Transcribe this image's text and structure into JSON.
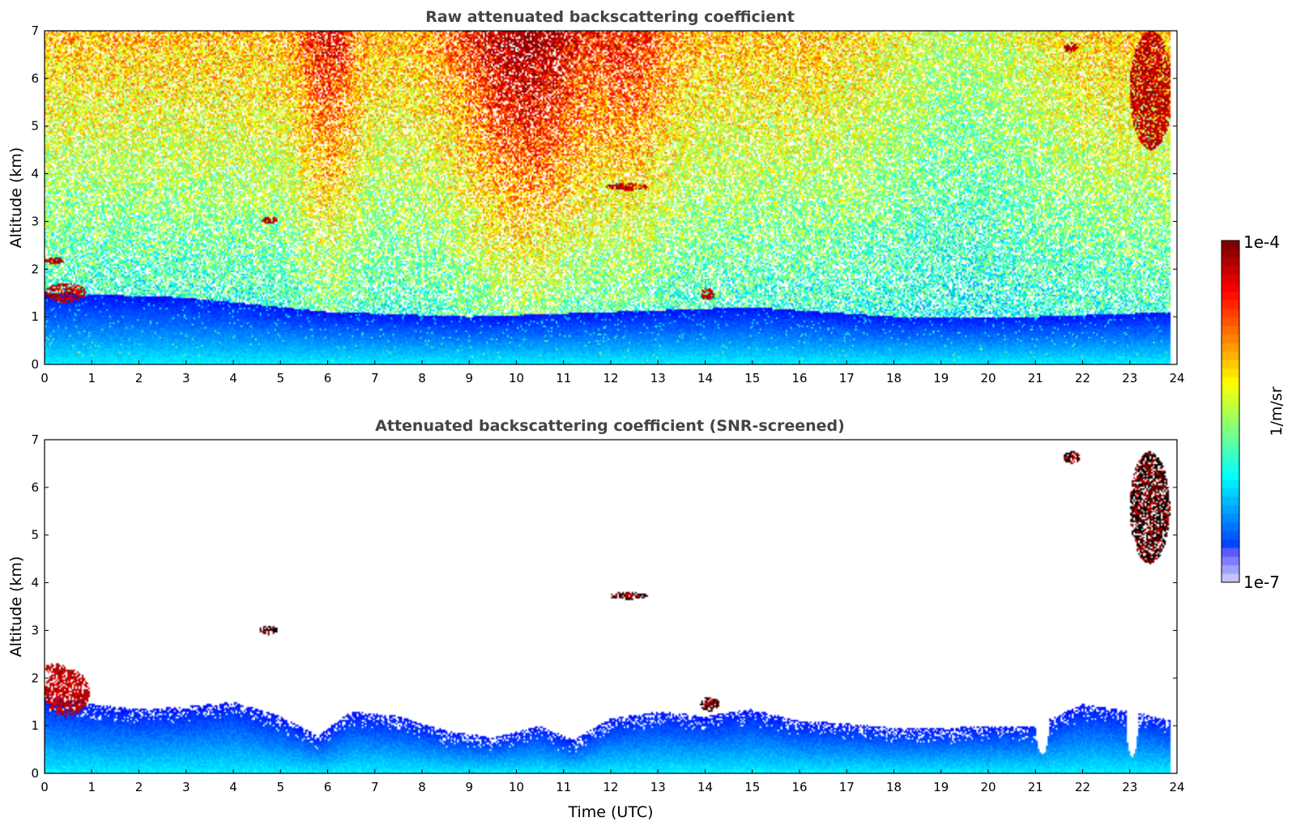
{
  "chart_data": [
    {
      "type": "heatmap",
      "title": "Raw attenuated backscattering coefficient",
      "xlabel": "",
      "ylabel": "Altitude (km)",
      "xlim": [
        0,
        24
      ],
      "ylim": [
        0,
        7
      ],
      "x_ticks": [
        "0",
        "1",
        "2",
        "3",
        "4",
        "5",
        "6",
        "7",
        "8",
        "9",
        "10",
        "11",
        "12",
        "13",
        "14",
        "15",
        "16",
        "17",
        "18",
        "19",
        "20",
        "21",
        "22",
        "23",
        "24"
      ],
      "y_ticks": [
        "0",
        "1",
        "2",
        "3",
        "4",
        "5",
        "6",
        "7"
      ],
      "data_end_time": 23.85,
      "colormap": "jet",
      "noise": "high above boundary layer, strongest 9-12 UTC and 5.5-6.5 UTC",
      "boundary_layer_top_km": [
        {
          "t": 0,
          "z": 1.5
        },
        {
          "t": 3,
          "z": 1.4
        },
        {
          "t": 6,
          "z": 1.1
        },
        {
          "t": 9,
          "z": 1.0
        },
        {
          "t": 12,
          "z": 1.1
        },
        {
          "t": 15,
          "z": 1.2
        },
        {
          "t": 18,
          "z": 1.0
        },
        {
          "t": 21,
          "z": 1.0
        },
        {
          "t": 24,
          "z": 1.1
        }
      ],
      "cloud_features": [
        {
          "t0": 0.0,
          "t1": 0.4,
          "z0": 2.1,
          "z1": 2.25,
          "level": "high"
        },
        {
          "t0": 0.0,
          "t1": 0.9,
          "z0": 1.3,
          "z1": 1.7,
          "level": "high"
        },
        {
          "t0": 4.6,
          "t1": 4.95,
          "z0": 2.95,
          "z1": 3.1,
          "level": "high"
        },
        {
          "t0": 11.9,
          "t1": 12.8,
          "z0": 3.65,
          "z1": 3.8,
          "level": "high"
        },
        {
          "t0": 13.9,
          "t1": 14.2,
          "z0": 1.35,
          "z1": 1.6,
          "level": "high"
        },
        {
          "t0": 21.6,
          "t1": 21.9,
          "z0": 6.55,
          "z1": 6.75,
          "level": "high"
        },
        {
          "t0": 23.0,
          "t1": 23.9,
          "z0": 4.5,
          "z1": 7.0,
          "level": "high"
        }
      ]
    },
    {
      "type": "heatmap",
      "title": "Attenuated backscattering coefficient (SNR-screened)",
      "xlabel": "Time (UTC)",
      "ylabel": "Altitude (km)",
      "xlim": [
        0,
        24
      ],
      "ylim": [
        0,
        7
      ],
      "x_ticks": [
        "0",
        "1",
        "2",
        "3",
        "4",
        "5",
        "6",
        "7",
        "8",
        "9",
        "10",
        "11",
        "12",
        "13",
        "14",
        "15",
        "16",
        "17",
        "18",
        "19",
        "20",
        "21",
        "22",
        "23",
        "24"
      ],
      "y_ticks": [
        "0",
        "1",
        "2",
        "3",
        "4",
        "5",
        "6",
        "7"
      ],
      "data_end_time": 23.85,
      "colormap": "jet",
      "screened_out": "white",
      "boundary_layer_top_km": [
        {
          "t": 0,
          "z": 1.6
        },
        {
          "t": 1,
          "z": 1.45
        },
        {
          "t": 2,
          "z": 1.35
        },
        {
          "t": 3,
          "z": 1.4
        },
        {
          "t": 4,
          "z": 1.5
        },
        {
          "t": 5,
          "z": 1.2
        },
        {
          "t": 5.8,
          "z": 0.8
        },
        {
          "t": 6.5,
          "z": 1.3
        },
        {
          "t": 7.5,
          "z": 1.2
        },
        {
          "t": 8.5,
          "z": 0.9
        },
        {
          "t": 9.5,
          "z": 0.75
        },
        {
          "t": 10.5,
          "z": 1.0
        },
        {
          "t": 11.2,
          "z": 0.7
        },
        {
          "t": 12,
          "z": 1.15
        },
        {
          "t": 13,
          "z": 1.3
        },
        {
          "t": 14,
          "z": 1.2
        },
        {
          "t": 15,
          "z": 1.35
        },
        {
          "t": 16,
          "z": 1.1
        },
        {
          "t": 17,
          "z": 1.05
        },
        {
          "t": 18,
          "z": 0.95
        },
        {
          "t": 19,
          "z": 0.95
        },
        {
          "t": 20,
          "z": 1.0
        },
        {
          "t": 21,
          "z": 1.0
        },
        {
          "t": 22,
          "z": 1.45
        },
        {
          "t": 23,
          "z": 1.3
        },
        {
          "t": 24,
          "z": 1.1
        }
      ],
      "gaps": [
        {
          "t_center": 21.15,
          "half_width": 0.14,
          "bottom_km": 0.4
        },
        {
          "t_center": 23.05,
          "half_width": 0.13,
          "bottom_km": 0.35
        }
      ],
      "cloud_features": [
        {
          "t0": 0.0,
          "t1": 0.45,
          "z0": 2.1,
          "z1": 2.3,
          "level": "high"
        },
        {
          "t0": 0.0,
          "t1": 0.95,
          "z0": 1.2,
          "z1": 2.2,
          "level": "high"
        },
        {
          "t0": 4.55,
          "t1": 4.95,
          "z0": 2.9,
          "z1": 3.1,
          "level": "black"
        },
        {
          "t0": 11.95,
          "t1": 12.8,
          "z0": 3.65,
          "z1": 3.8,
          "level": "black"
        },
        {
          "t0": 13.9,
          "t1": 14.3,
          "z0": 1.3,
          "z1": 1.6,
          "level": "black"
        },
        {
          "t0": 21.6,
          "t1": 21.95,
          "z0": 6.5,
          "z1": 6.75,
          "level": "black"
        },
        {
          "t0": 23.0,
          "t1": 23.85,
          "z0": 4.4,
          "z1": 6.75,
          "level": "black"
        }
      ]
    }
  ],
  "colorbar": {
    "label": "1/m/sr",
    "max_label": "1e-4",
    "min_label": "1e-7"
  }
}
